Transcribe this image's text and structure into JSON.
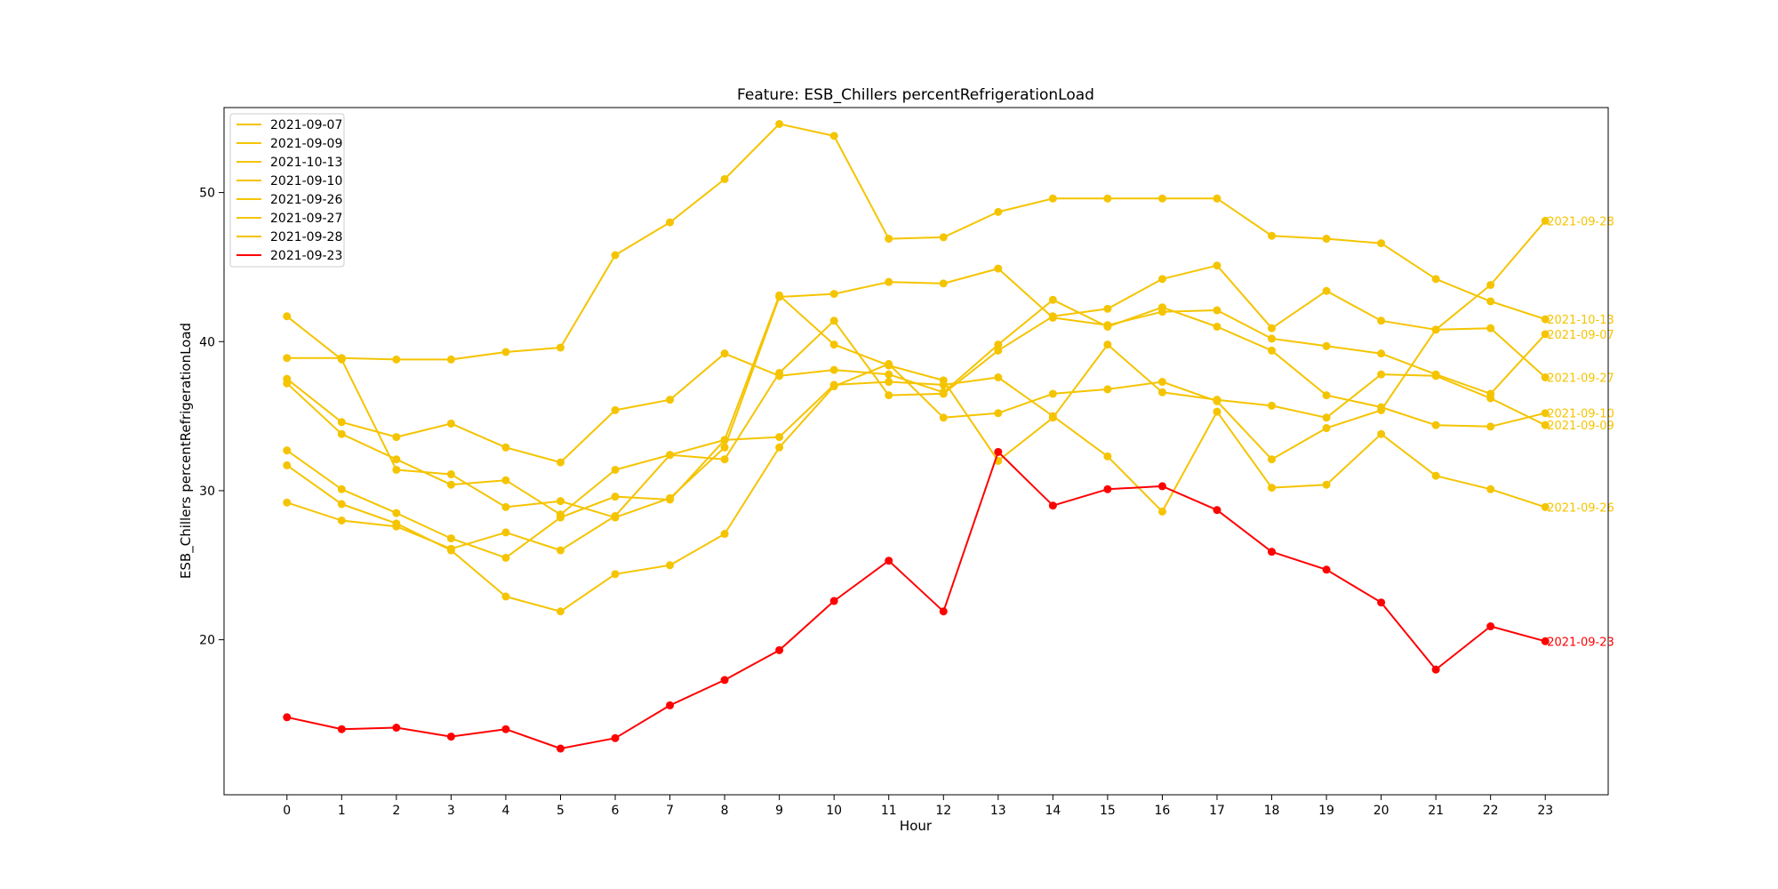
{
  "chart_data": {
    "type": "line",
    "title": "Feature: ESB_Chillers percentRefrigerationLoad",
    "xlabel": "Hour",
    "ylabel": "ESB_Chillers percentRefrigerationLoad",
    "x": [
      0,
      1,
      2,
      3,
      4,
      5,
      6,
      7,
      8,
      9,
      10,
      11,
      12,
      13,
      14,
      15,
      16,
      17,
      18,
      19,
      20,
      21,
      22,
      23
    ],
    "xlim": [
      -1.15,
      24.15
    ],
    "ylim": [
      9.6,
      55.7
    ],
    "yticks": [
      20,
      30,
      40,
      50
    ],
    "grid": false,
    "legend_position": "top-left",
    "series": [
      {
        "name": "2021-09-07",
        "color": "#f5c400",
        "values": [
          41.7,
          38.8,
          31.4,
          31.1,
          28.9,
          29.3,
          28.2,
          29.5,
          32.9,
          43.0,
          43.2,
          44.0,
          43.9,
          44.9,
          41.6,
          41.1,
          42.0,
          42.1,
          40.2,
          39.7,
          39.2,
          37.8,
          36.5,
          40.5
        ]
      },
      {
        "name": "2021-09-09",
        "color": "#f5c400",
        "values": [
          32.7,
          30.1,
          28.5,
          26.8,
          25.5,
          28.2,
          29.6,
          29.4,
          33.4,
          43.1,
          39.8,
          38.4,
          37.4,
          32.0,
          34.9,
          39.8,
          36.6,
          36.1,
          35.7,
          34.9,
          37.8,
          37.7,
          36.2,
          34.4
        ]
      },
      {
        "name": "2021-10-13",
        "color": "#f5c400",
        "values": [
          38.9,
          38.9,
          38.8,
          38.8,
          39.3,
          39.6,
          45.8,
          48.0,
          50.9,
          54.6,
          53.8,
          46.9,
          47.0,
          48.7,
          49.6,
          49.6,
          49.6,
          49.6,
          47.1,
          46.9,
          46.6,
          44.2,
          42.7,
          41.5
        ]
      },
      {
        "name": "2021-09-10",
        "color": "#f5c400",
        "values": [
          37.5,
          34.6,
          33.6,
          34.5,
          32.9,
          31.9,
          35.4,
          36.1,
          39.2,
          37.7,
          38.1,
          37.8,
          36.6,
          39.8,
          42.8,
          41.0,
          42.3,
          41.0,
          39.4,
          36.4,
          35.6,
          34.4,
          34.3,
          35.2
        ]
      },
      {
        "name": "2021-09-26",
        "color": "#f5c400",
        "values": [
          29.2,
          28.0,
          27.6,
          26.1,
          27.2,
          26.0,
          28.3,
          32.4,
          33.4,
          33.6,
          37.1,
          37.3,
          37.1,
          37.6,
          35.0,
          32.3,
          28.6,
          35.3,
          30.2,
          30.4,
          33.8,
          31.0,
          30.1,
          28.9
        ]
      },
      {
        "name": "2021-09-27",
        "color": "#f5c400",
        "values": [
          37.2,
          33.8,
          32.1,
          30.4,
          30.7,
          28.4,
          31.4,
          32.4,
          32.1,
          37.9,
          41.4,
          36.4,
          36.5,
          39.4,
          41.7,
          42.2,
          44.2,
          45.1,
          40.9,
          43.4,
          41.4,
          40.8,
          40.9,
          37.6
        ]
      },
      {
        "name": "2021-09-28",
        "color": "#f5c400",
        "values": [
          31.7,
          29.1,
          27.8,
          26.0,
          22.9,
          21.9,
          24.4,
          25.0,
          27.1,
          32.9,
          37.0,
          38.5,
          34.9,
          35.2,
          36.5,
          36.8,
          37.3,
          36.0,
          32.1,
          34.2,
          35.4,
          40.8,
          43.8,
          48.1
        ]
      },
      {
        "name": "2021-09-23",
        "color": "#ff0000",
        "values": [
          14.8,
          14.0,
          14.1,
          13.5,
          14.0,
          12.7,
          13.4,
          15.6,
          17.3,
          19.3,
          22.6,
          25.3,
          21.9,
          32.6,
          29.0,
          30.1,
          30.3,
          28.7,
          25.9,
          24.7,
          22.5,
          18.0,
          20.9,
          19.9
        ]
      }
    ]
  }
}
